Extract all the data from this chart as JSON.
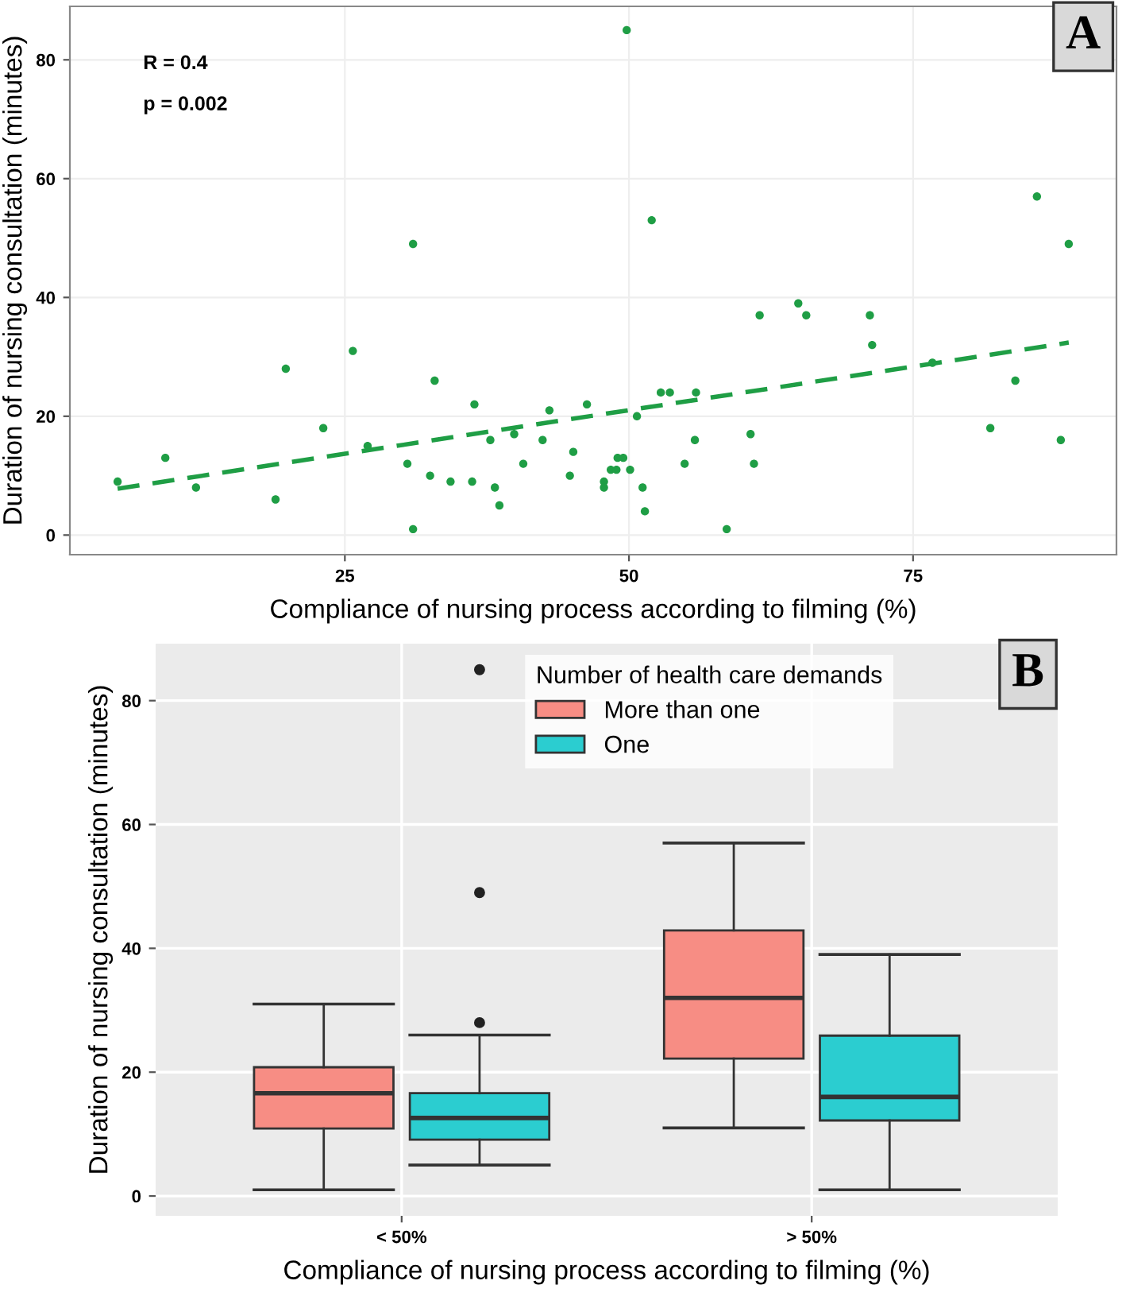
{
  "chart_data": [
    {
      "type": "scatter",
      "xlabel": "Compliance of nursing process according to filming (%)",
      "ylabel": "Duration of nursing consultation (minutes)",
      "annotations": [
        "R = 0.4",
        "p = 0.002",
        "A"
      ],
      "xlim": [
        0.8,
        92.9
      ],
      "ylim": [
        -3.3,
        89
      ],
      "xticks": [
        25,
        50,
        75
      ],
      "yticks": [
        0,
        20,
        40,
        60,
        80
      ],
      "grid": true,
      "series": [
        {
          "type": "scatter",
          "color": "#1f9e45",
          "marker": "circle",
          "x": [
            5,
            9.2,
            11.9,
            18.9,
            19.8,
            23.1,
            25.7,
            27.0,
            31.0,
            30.5,
            31.0,
            32.9,
            32.5,
            34.3,
            36.4,
            36.2,
            37.8,
            38.2,
            38.6,
            39.9,
            40.7,
            42.4,
            43.0,
            44.8,
            45.1,
            46.3,
            47.8,
            47.8,
            48.4,
            48.9,
            49.0,
            49.5,
            49.8,
            50.1,
            50.7,
            51.2,
            51.4,
            52.0,
            52.8,
            53.6,
            54.9,
            55.8,
            55.9,
            58.6,
            60.7,
            61.0,
            61.5,
            64.9,
            65.6,
            71.2,
            71.4,
            76.7,
            81.8,
            84.0,
            85.9,
            88.0,
            88.7
          ],
          "values": [
            9,
            13,
            8,
            6,
            28,
            18,
            31,
            15,
            49,
            12,
            1,
            26,
            10,
            9,
            22,
            9,
            16,
            8,
            5,
            17,
            12,
            16,
            21,
            10,
            14,
            22,
            9,
            8,
            11,
            11,
            13,
            13,
            85,
            11,
            20,
            8,
            4,
            53,
            24,
            24,
            12,
            16,
            24,
            1,
            17,
            12,
            37,
            39,
            37,
            37,
            32,
            29,
            18,
            26,
            57,
            16,
            49
          ]
        },
        {
          "type": "line",
          "color": "#1f9e45",
          "line_style": "dashed",
          "marker": "none",
          "x": [
            5,
            88.7
          ],
          "values": [
            7.8,
            32.4
          ]
        }
      ]
    },
    {
      "type": "box",
      "categories": [
        "< 50%",
        "> 50%"
      ],
      "xlabel": "Compliance of nursing process according to filming (%)",
      "ylabel": "Duration of nursing consultation (minutes)",
      "legend_title": "Number of health care demands",
      "legend": "top right",
      "annotations": [
        "B"
      ],
      "ylim": [
        -3.2,
        89.2
      ],
      "yticks": [
        0,
        20,
        40,
        60,
        80
      ],
      "grid": true,
      "series": [
        {
          "name": "More than one",
          "color": "#f78d84",
          "boxes": [
            {
              "low": 1,
              "q1": 10.9,
              "median": 16.6,
              "q3": 20.8,
              "high": 31
            },
            {
              "low": 11,
              "q1": 22.2,
              "median": 32,
              "q3": 42.9,
              "high": 57
            }
          ]
        },
        {
          "name": "One",
          "color": "#2bcdd0",
          "boxes": [
            {
              "low": 5,
              "q1": 9.1,
              "median": 12.6,
              "q3": 16.6,
              "high": 26,
              "outliers": [
                28,
                49,
                85
              ]
            },
            {
              "low": 1,
              "q1": 12.2,
              "median": 16,
              "q3": 25.9,
              "high": 39
            }
          ]
        }
      ]
    }
  ]
}
